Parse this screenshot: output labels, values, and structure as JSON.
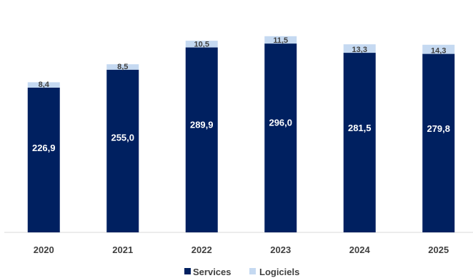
{
  "chart_data": {
    "type": "bar",
    "stacked": true,
    "categories": [
      "2020",
      "2021",
      "2022",
      "2023",
      "2024",
      "2025"
    ],
    "series": [
      {
        "name": "Services",
        "values": [
          226.9,
          255.0,
          289.9,
          296.0,
          281.5,
          279.8
        ],
        "labels": [
          "226,9",
          "255,0",
          "289,9",
          "296,0",
          "281,5",
          "279,8"
        ],
        "color": "#002060"
      },
      {
        "name": "Logiciels",
        "values": [
          8.4,
          8.5,
          10.5,
          11.5,
          13.3,
          14.3
        ],
        "labels": [
          "8,4",
          "8,5",
          "10,5",
          "11,5",
          "13,3",
          "14,3"
        ],
        "color": "#c5d9f1"
      }
    ],
    "ylim": [
      0,
      330
    ],
    "grid": false,
    "legend": "bottom"
  }
}
